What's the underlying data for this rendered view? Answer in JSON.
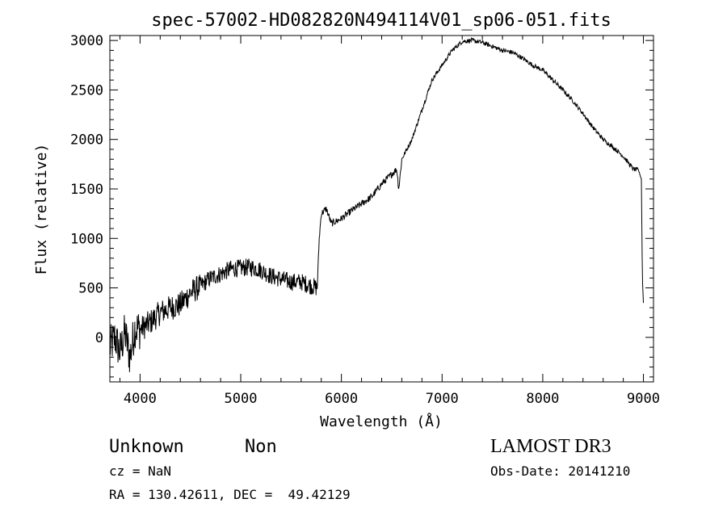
{
  "chart_data": {
    "type": "line",
    "title": "spec-57002-HD082820N494114V01_sp06-051.fits",
    "xlabel": "Wavelength (Å)",
    "ylabel": "Flux (relative)",
    "xlim": [
      3700,
      9100
    ],
    "ylim": [
      -450,
      3050
    ],
    "x_ticks": [
      4000,
      5000,
      6000,
      7000,
      8000,
      9000
    ],
    "y_ticks": [
      0,
      500,
      1000,
      1500,
      2000,
      2500,
      3000
    ],
    "grid": false,
    "series": [
      {
        "x": [
          3700,
          3750,
          3800,
          3850,
          3900,
          3950,
          4000,
          4100,
          4200,
          4300,
          4400,
          4500,
          4600,
          4700,
          4800,
          4900,
          5000,
          5100,
          5200,
          5300,
          5400,
          5500,
          5600,
          5700,
          5760,
          5780,
          5800,
          5850,
          5900,
          6000,
          6100,
          6200,
          6300,
          6400,
          6500,
          6550,
          6570,
          6600,
          6700,
          6800,
          6900,
          7000,
          7100,
          7200,
          7300,
          7400,
          7500,
          7600,
          7700,
          7800,
          7900,
          8000,
          8100,
          8200,
          8300,
          8400,
          8500,
          8600,
          8700,
          8800,
          8900,
          8950,
          8980,
          8990,
          9000
        ],
        "y": [
          -100,
          0,
          -150,
          50,
          -200,
          100,
          80,
          150,
          250,
          300,
          330,
          450,
          520,
          600,
          640,
          690,
          700,
          710,
          680,
          620,
          590,
          560,
          560,
          520,
          500,
          1000,
          1250,
          1300,
          1150,
          1200,
          1280,
          1350,
          1420,
          1550,
          1650,
          1700,
          1500,
          1800,
          2000,
          2300,
          2600,
          2750,
          2900,
          2990,
          3000,
          2980,
          2940,
          2900,
          2880,
          2820,
          2750,
          2700,
          2600,
          2500,
          2390,
          2260,
          2120,
          2000,
          1920,
          1830,
          1700,
          1690,
          1600,
          600,
          350
        ]
      }
    ]
  },
  "annotations": {
    "object_class": "Unknown",
    "subclass": "Non",
    "survey": "LAMOST DR3",
    "redshift": "cz = NaN",
    "obs_date": "Obs-Date: 20141210",
    "coordinates": "RA = 130.42611, DEC =  49.42129"
  }
}
